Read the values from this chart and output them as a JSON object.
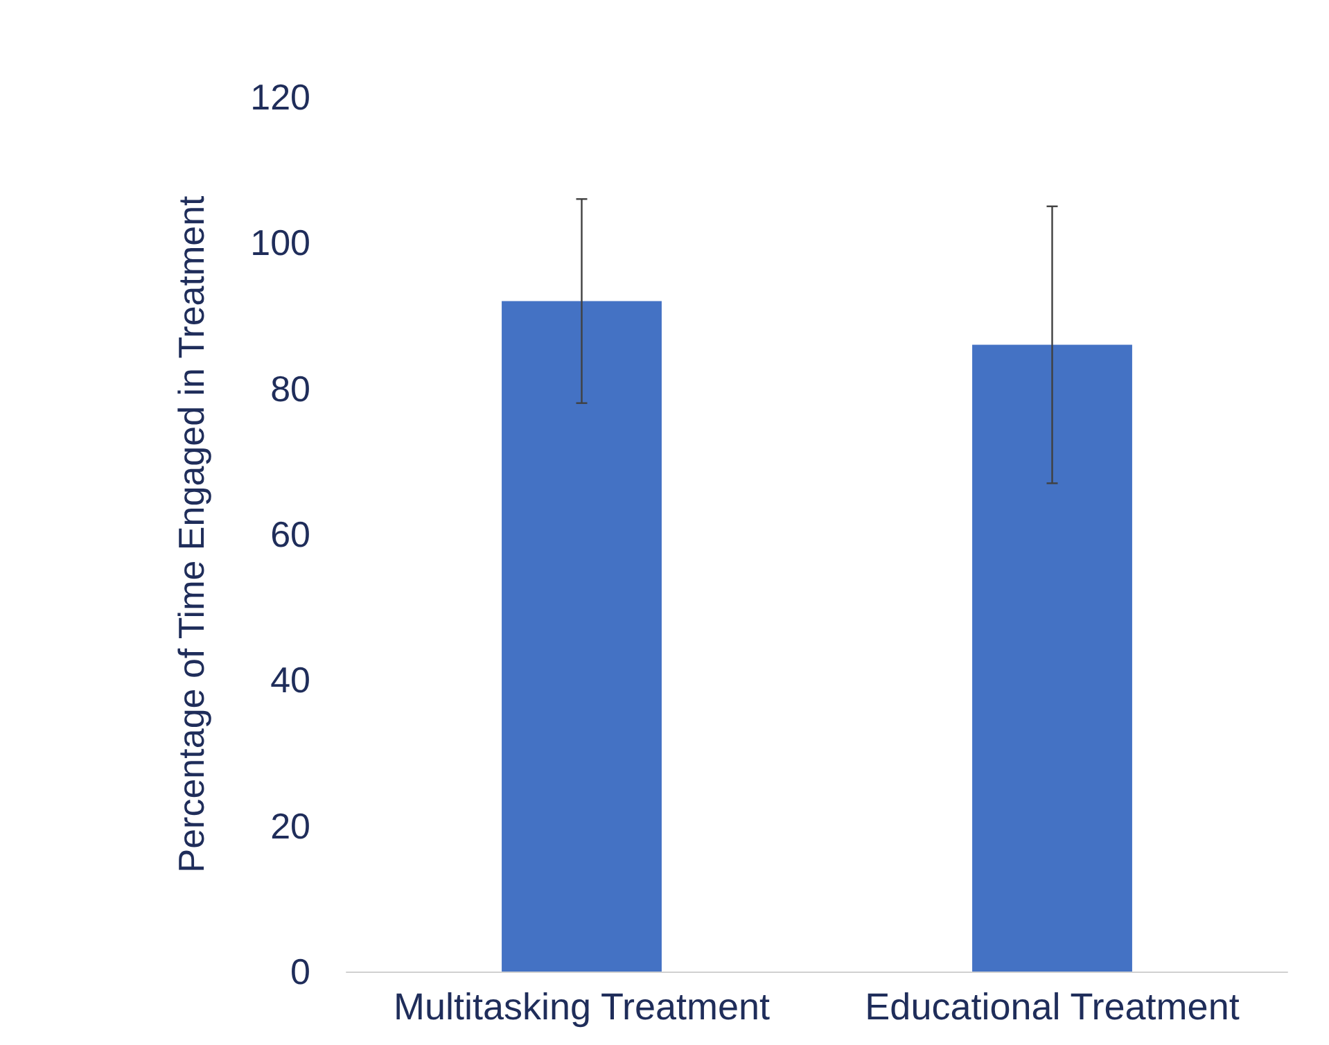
{
  "chart_data": {
    "type": "bar",
    "ylabel": "Percentage of Time Engaged in Treatment",
    "categories": [
      "Multitasking Treatment",
      "Educational Treatment"
    ],
    "values": [
      92,
      86
    ],
    "color": "#4472c4",
    "errors": [
      [
        78,
        106
      ],
      [
        67,
        105
      ]
    ],
    "ylim": [
      0,
      120
    ],
    "yticks": [
      0,
      20,
      40,
      60,
      80,
      100,
      120
    ],
    "grid": false
  }
}
